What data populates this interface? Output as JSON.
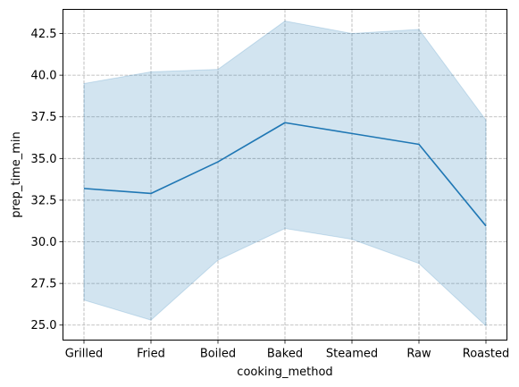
{
  "chart_data": {
    "type": "line",
    "title": "",
    "xlabel": "cooking_method",
    "ylabel": "prep_time_min",
    "categories": [
      "Grilled",
      "Fried",
      "Boiled",
      "Baked",
      "Steamed",
      "Raw",
      "Roasted"
    ],
    "series": [
      {
        "values": [
          33.2,
          32.9,
          34.8,
          37.15,
          36.5,
          35.85,
          30.95
        ],
        "ci_lower": [
          26.5,
          25.3,
          28.9,
          30.8,
          30.15,
          28.7,
          24.95
        ],
        "ci_upper": [
          39.5,
          40.2,
          40.35,
          43.25,
          42.5,
          42.75,
          37.3
        ]
      }
    ],
    "yticks": [
      25.0,
      27.5,
      30.0,
      32.5,
      35.0,
      37.5,
      40.0,
      42.5
    ],
    "ytick_labels": [
      "25.0",
      "27.5",
      "30.0",
      "32.5",
      "35.0",
      "37.5",
      "40.0",
      "42.5"
    ],
    "ylim": [
      24.1,
      43.95
    ],
    "grid": true,
    "grid_style": "dashed",
    "colors": {
      "line": "#1f77b4",
      "band": "#1f77b4",
      "grid": "#b0b0b0",
      "axis": "#000000"
    }
  }
}
